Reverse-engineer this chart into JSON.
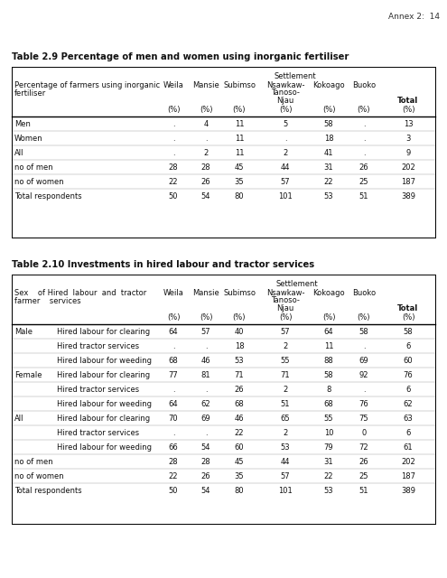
{
  "annex_text": "Annex 2:  14",
  "table1_title": "Table 2.9 Percentage of men and women using inorganic fertiliser",
  "table2_title": "Table 2.10 Investments in hired labour and tractor services",
  "t1_rows": [
    [
      "Men",
      ".",
      "4",
      "11",
      "5",
      "58",
      ".",
      "13"
    ],
    [
      "Women",
      ".",
      ".",
      "11",
      ".",
      "18",
      ".",
      "3"
    ],
    [
      "All",
      ".",
      "2",
      "11",
      "2",
      "41",
      ".",
      "9"
    ],
    [
      "no of men",
      "28",
      "28",
      "45",
      "44",
      "31",
      "26",
      "202"
    ],
    [
      "no of women",
      "22",
      "26",
      "35",
      "57",
      "22",
      "25",
      "187"
    ],
    [
      "Total respondents",
      "50",
      "54",
      "80",
      "101",
      "53",
      "51",
      "389"
    ]
  ],
  "t2_rows": [
    [
      "Male",
      "Hired labour for clearing",
      "64",
      "57",
      "40",
      "57",
      "64",
      "58",
      "58"
    ],
    [
      "",
      "Hired tractor services",
      ".",
      ".",
      "18",
      "2",
      "11",
      ".",
      "6"
    ],
    [
      "",
      "Hired labour for weeding",
      "68",
      "46",
      "53",
      "55",
      "88",
      "69",
      "60"
    ],
    [
      "Female",
      "Hired labour for clearing",
      "77",
      "81",
      "71",
      "71",
      "58",
      "92",
      "76"
    ],
    [
      "",
      "Hired tractor services",
      ".",
      ".",
      "26",
      "2",
      "8",
      ".",
      "6"
    ],
    [
      "",
      "Hired labour for weeding",
      "64",
      "62",
      "68",
      "51",
      "68",
      "76",
      "62"
    ],
    [
      "All",
      "Hired labour for clearing",
      "70",
      "69",
      "46",
      "65",
      "55",
      "75",
      "63"
    ],
    [
      "",
      "Hired tractor services",
      ".",
      ".",
      "22",
      "2",
      "10",
      "0",
      "6"
    ],
    [
      "",
      "Hired labour for weeding",
      "66",
      "54",
      "60",
      "53",
      "79",
      "72",
      "61"
    ],
    [
      "no of men",
      "",
      "28",
      "28",
      "45",
      "44",
      "31",
      "26",
      "202"
    ],
    [
      "no of women",
      "",
      "22",
      "26",
      "35",
      "57",
      "22",
      "25",
      "187"
    ],
    [
      "Total respondents",
      "",
      "50",
      "54",
      "80",
      "101",
      "53",
      "51",
      "389"
    ]
  ],
  "t2_shaded_rows": [
    0,
    3,
    6
  ],
  "bg_color": "#ffffff",
  "shade_color": "#d3d3d3",
  "border_color": "#000000",
  "thin_line_color": "#999999"
}
